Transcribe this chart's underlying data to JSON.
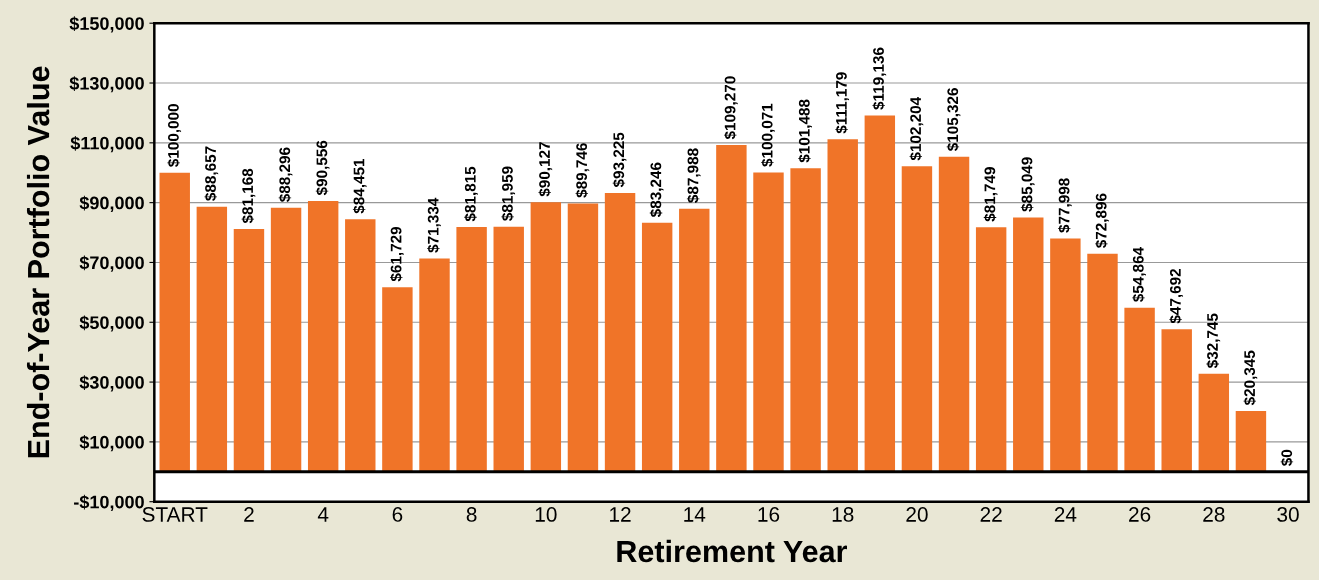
{
  "chart_data": {
    "type": "bar",
    "xlabel": "Retirement Year",
    "ylabel": "End-of-Year Portfolio Value",
    "categories": [
      "START",
      null,
      "2",
      null,
      "4",
      null,
      "6",
      null,
      "8",
      null,
      "10",
      null,
      "12",
      null,
      "14",
      null,
      "16",
      null,
      "18",
      null,
      "20",
      null,
      "22",
      null,
      "24",
      null,
      "26",
      null,
      "28",
      null,
      "30"
    ],
    "values": [
      100000,
      88657,
      81168,
      88296,
      90556,
      84451,
      61729,
      71334,
      81815,
      81959,
      90127,
      89746,
      93225,
      83246,
      87988,
      109270,
      100071,
      101488,
      111179,
      119136,
      102204,
      105326,
      81749,
      85049,
      77998,
      72896,
      54864,
      47692,
      32745,
      20345,
      0
    ],
    "value_labels": [
      "$100,000",
      "$88,657",
      "$81,168",
      "$88,296",
      "$90,556",
      "$84,451",
      "$61,729",
      "$71,334",
      "$81,815",
      "$81,959",
      "$90,127",
      "$89,746",
      "$93,225",
      "$83,246",
      "$87,988",
      "$109,270",
      "$100,071",
      "$101,488",
      "$111,179",
      "$119,136",
      "$102,204",
      "$105,326",
      "$81,749",
      "$85,049",
      "$77,998",
      "$72,896",
      "$54,864",
      "$47,692",
      "$32,745",
      "$20,345",
      "$0"
    ],
    "color": "#f07428",
    "ylim": [
      -10000,
      150000
    ],
    "yticks": [
      {
        "value": -10000,
        "label": "-$10,000"
      },
      {
        "value": 10000,
        "label": "$10,000"
      },
      {
        "value": 30000,
        "label": "$30,000"
      },
      {
        "value": 50000,
        "label": "$50,000"
      },
      {
        "value": 70000,
        "label": "$70,000"
      },
      {
        "value": 90000,
        "label": "$90,000"
      },
      {
        "value": 110000,
        "label": "$110,000"
      },
      {
        "value": 130000,
        "label": "$130,000"
      },
      {
        "value": 150000,
        "label": "$150,000"
      }
    ],
    "grid": "y",
    "ref_lines": [
      {
        "axis": "y",
        "value": 0,
        "color": "#000000"
      }
    ]
  }
}
